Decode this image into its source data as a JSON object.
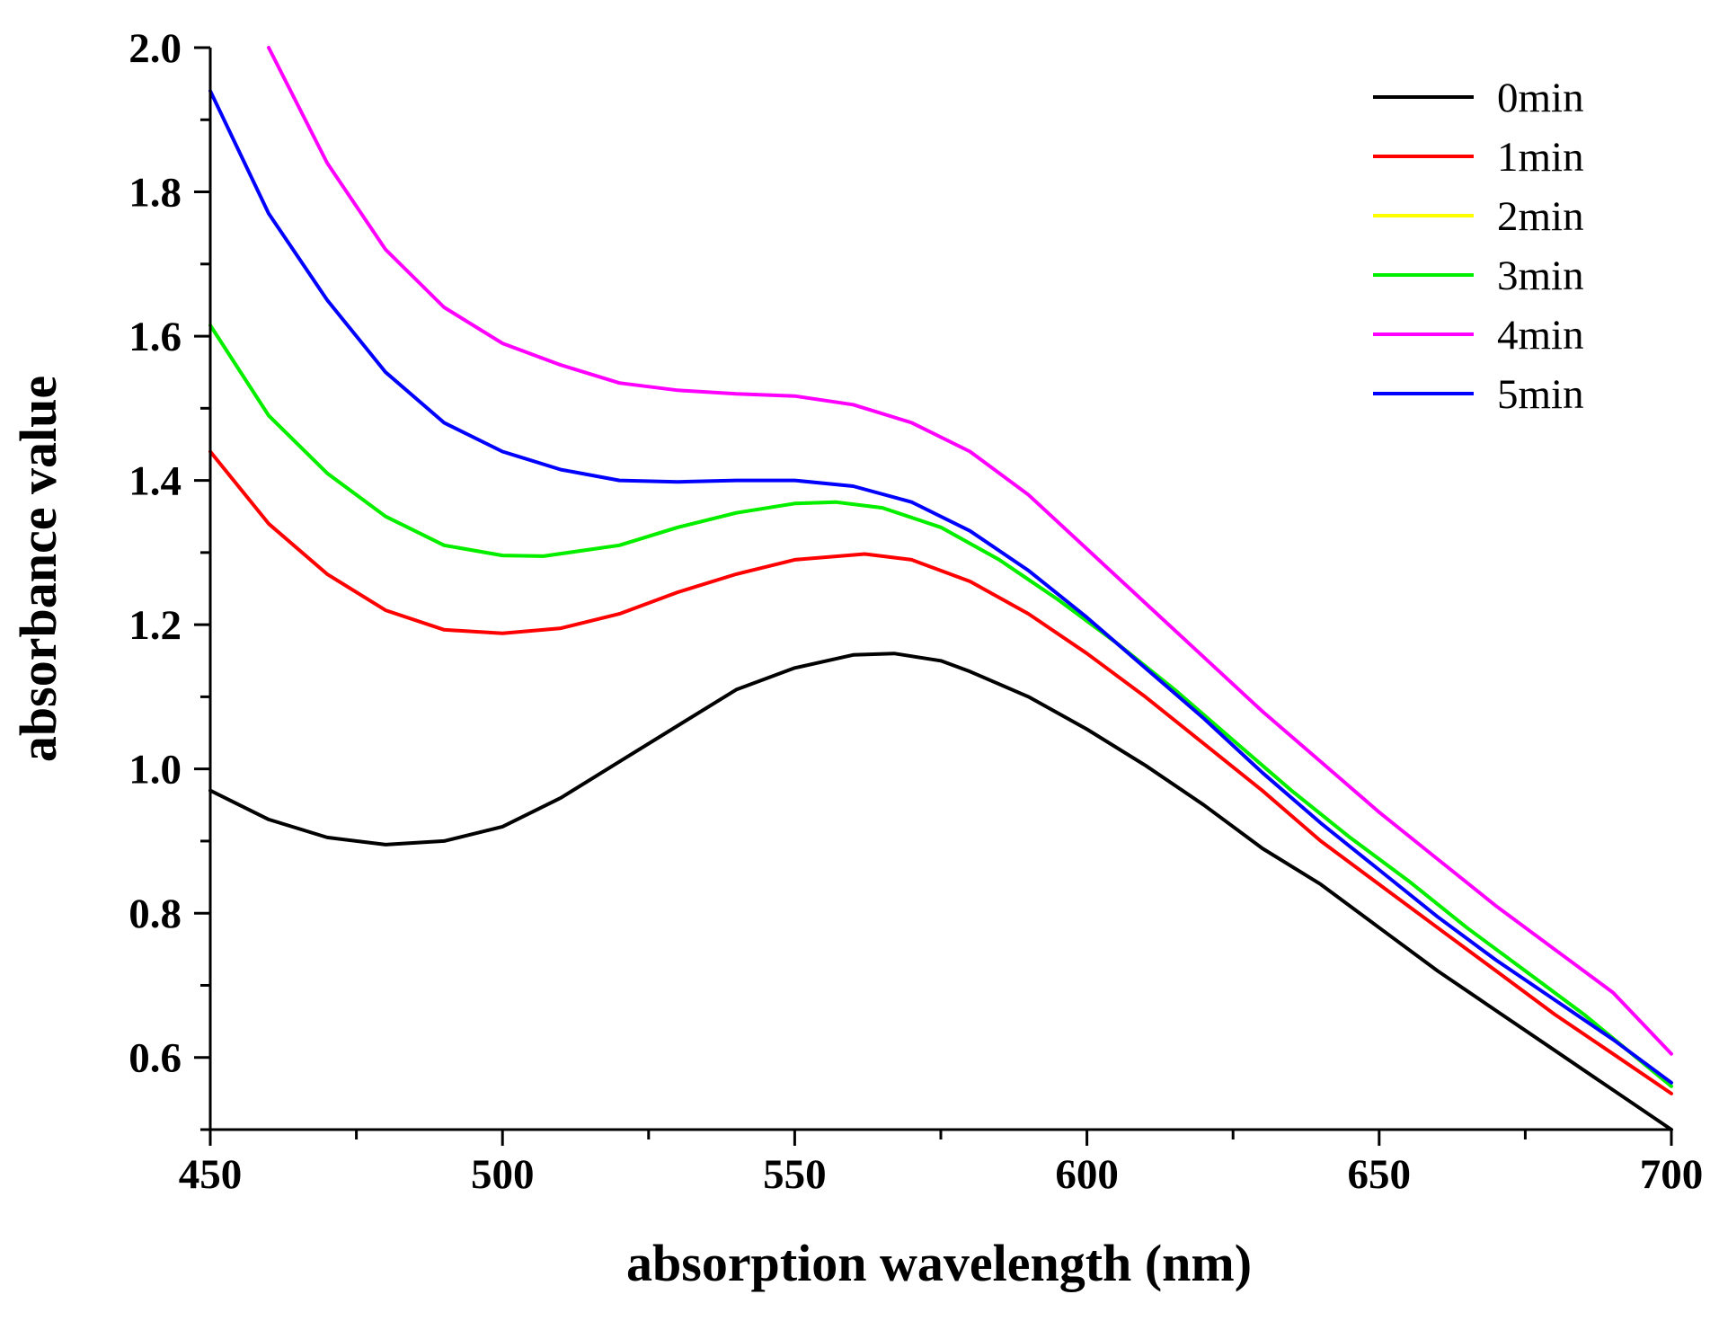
{
  "chart_data": {
    "type": "line",
    "title": "",
    "xlabel": "absorption wavelength (nm)",
    "ylabel": "absorbance value",
    "xlim": [
      450,
      700
    ],
    "ylim": [
      0.5,
      2.0
    ],
    "xticks": [
      450,
      500,
      550,
      600,
      650,
      700
    ],
    "xtick_labels": [
      "450",
      "500",
      "550",
      "600",
      "650",
      "700"
    ],
    "yticks": [
      0.6,
      0.8,
      1.0,
      1.2,
      1.4,
      1.6,
      1.8,
      2.0
    ],
    "ytick_labels": [
      "0.6",
      "0.8",
      "1.0",
      "1.2",
      "1.4",
      "1.6",
      "1.8",
      "2.0"
    ],
    "legend_position": "top-right",
    "series": [
      {
        "name": "0min",
        "color": "#000000",
        "x": [
          450,
          460,
          470,
          480,
          490,
          500,
          510,
          520,
          530,
          540,
          550,
          560,
          567,
          575,
          580,
          590,
          600,
          610,
          620,
          630,
          640,
          650,
          660,
          670,
          680,
          690,
          700
        ],
        "y": [
          0.97,
          0.93,
          0.905,
          0.895,
          0.9,
          0.92,
          0.96,
          1.01,
          1.06,
          1.11,
          1.14,
          1.158,
          1.16,
          1.15,
          1.135,
          1.1,
          1.055,
          1.005,
          0.95,
          0.89,
          0.84,
          0.78,
          0.72,
          0.665,
          0.61,
          0.555,
          0.5
        ]
      },
      {
        "name": "1min",
        "color": "#ff0000",
        "x": [
          450,
          460,
          470,
          480,
          490,
          500,
          510,
          520,
          530,
          540,
          550,
          562,
          570,
          580,
          590,
          600,
          610,
          620,
          630,
          640,
          650,
          660,
          670,
          680,
          690,
          700
        ],
        "y": [
          1.44,
          1.34,
          1.27,
          1.22,
          1.193,
          1.188,
          1.195,
          1.215,
          1.245,
          1.27,
          1.29,
          1.298,
          1.29,
          1.26,
          1.215,
          1.16,
          1.1,
          1.035,
          0.97,
          0.9,
          0.84,
          0.78,
          0.72,
          0.66,
          0.605,
          0.55
        ]
      },
      {
        "name": "2min",
        "color": "#ffff00",
        "x": [
          450,
          460,
          470,
          480,
          490,
          500,
          507,
          520,
          530,
          540,
          550,
          557,
          565,
          575,
          585,
          595,
          605,
          615,
          625,
          635,
          645,
          655,
          665,
          675,
          685,
          700
        ],
        "y": [
          1.615,
          1.49,
          1.41,
          1.35,
          1.31,
          1.296,
          1.295,
          1.31,
          1.335,
          1.355,
          1.368,
          1.37,
          1.362,
          1.335,
          1.29,
          1.235,
          1.175,
          1.11,
          1.04,
          0.97,
          0.905,
          0.845,
          0.78,
          0.72,
          0.66,
          0.56
        ]
      },
      {
        "name": "3min",
        "color": "#00ee00",
        "x": [
          450,
          460,
          470,
          480,
          490,
          500,
          507,
          520,
          530,
          540,
          550,
          557,
          565,
          575,
          585,
          595,
          605,
          615,
          625,
          635,
          645,
          655,
          665,
          675,
          685,
          700
        ],
        "y": [
          1.615,
          1.49,
          1.41,
          1.35,
          1.31,
          1.296,
          1.295,
          1.31,
          1.335,
          1.355,
          1.368,
          1.37,
          1.362,
          1.335,
          1.29,
          1.235,
          1.175,
          1.11,
          1.04,
          0.97,
          0.905,
          0.845,
          0.78,
          0.72,
          0.66,
          0.56
        ]
      },
      {
        "name": "4min",
        "color": "#ff00ff",
        "x": [
          460,
          470,
          480,
          490,
          500,
          510,
          520,
          530,
          540,
          550,
          560,
          570,
          580,
          590,
          600,
          610,
          620,
          630,
          640,
          650,
          660,
          670,
          680,
          690,
          700
        ],
        "y": [
          2.0,
          1.84,
          1.72,
          1.64,
          1.59,
          1.56,
          1.535,
          1.525,
          1.52,
          1.517,
          1.505,
          1.48,
          1.44,
          1.38,
          1.305,
          1.23,
          1.155,
          1.08,
          1.01,
          0.94,
          0.875,
          0.81,
          0.75,
          0.69,
          0.605
        ]
      },
      {
        "name": "5min",
        "color": "#0000ff",
        "x": [
          450,
          460,
          470,
          480,
          490,
          500,
          510,
          520,
          530,
          540,
          550,
          560,
          570,
          580,
          590,
          600,
          610,
          620,
          630,
          640,
          650,
          660,
          670,
          680,
          690,
          700
        ],
        "y": [
          1.94,
          1.77,
          1.65,
          1.55,
          1.48,
          1.44,
          1.415,
          1.4,
          1.398,
          1.4,
          1.4,
          1.392,
          1.37,
          1.33,
          1.275,
          1.21,
          1.14,
          1.07,
          0.995,
          0.925,
          0.86,
          0.795,
          0.735,
          0.68,
          0.625,
          0.565
        ]
      }
    ]
  }
}
